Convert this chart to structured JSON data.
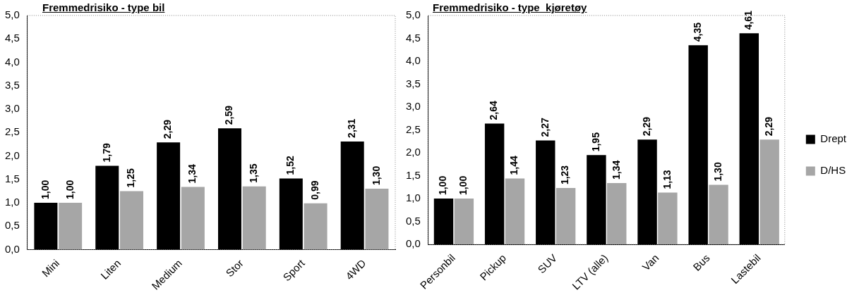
{
  "chart_data": [
    {
      "type": "bar",
      "title": "Fremmedrisiko - type bil",
      "categories": [
        "Mini",
        "Liten",
        "Medium",
        "Stor",
        "Sport",
        "4WD"
      ],
      "series": [
        {
          "color": "#000000",
          "values": [
            1.0,
            1.79,
            2.29,
            2.59,
            1.52,
            2.31
          ],
          "value_labels": [
            "1,00",
            "1,79",
            "2,29",
            "2,59",
            "1,52",
            "2,31"
          ]
        },
        {
          "color": "#a6a6a6",
          "values": [
            1.0,
            1.25,
            1.34,
            1.35,
            0.99,
            1.3
          ],
          "value_labels": [
            "1,00",
            "1,25",
            "1,34",
            "1,35",
            "0,99",
            "1,30"
          ]
        }
      ],
      "ylim": [
        0,
        5
      ],
      "yticks": [
        {
          "value": 0,
          "label": "0,0"
        },
        {
          "value": 0.5,
          "label": "0,5"
        },
        {
          "value": 1,
          "label": "1,0"
        },
        {
          "value": 1.5,
          "label": "1,5"
        },
        {
          "value": 2,
          "label": "2,0"
        },
        {
          "value": 2.5,
          "label": "2,5"
        },
        {
          "value": 3,
          "label": "3,0"
        },
        {
          "value": 3.5,
          "label": "3,5"
        },
        {
          "value": 4,
          "label": "4,0"
        },
        {
          "value": 4.5,
          "label": "4,5"
        },
        {
          "value": 5,
          "label": "5,0"
        }
      ],
      "grid": false,
      "legend": false
    },
    {
      "type": "bar",
      "title": "Fremmedrisiko - type  kjøretøy",
      "categories": [
        "Personbil",
        "Pickup",
        "SUV",
        "LTV (alle)",
        "Van",
        "Bus",
        "Lastebil"
      ],
      "series": [
        {
          "name": "Drept",
          "color": "#000000",
          "values": [
            1.0,
            2.64,
            2.27,
            1.95,
            2.29,
            4.35,
            4.61
          ],
          "value_labels": [
            "1,00",
            "2,64",
            "2,27",
            "1,95",
            "2,29",
            "4,35",
            "4,61"
          ]
        },
        {
          "name": "D/HS",
          "color": "#a6a6a6",
          "values": [
            1.0,
            1.44,
            1.23,
            1.34,
            1.13,
            1.3,
            2.29
          ],
          "value_labels": [
            "1,00",
            "1,44",
            "1,23",
            "1,34",
            "1,13",
            "1,30",
            "2,29"
          ]
        }
      ],
      "ylim": [
        0,
        5
      ],
      "yticks": [
        {
          "value": 0,
          "label": "0,0"
        },
        {
          "value": 0.5,
          "label": "0,5"
        },
        {
          "value": 1,
          "label": "1,0"
        },
        {
          "value": 1.5,
          "label": "1,5"
        },
        {
          "value": 2,
          "label": "2,0"
        },
        {
          "value": 2.5,
          "label": "2,5"
        },
        {
          "value": 3,
          "label": "3,0"
        },
        {
          "value": 3.5,
          "label": "3,5"
        },
        {
          "value": 4,
          "label": "4,0"
        },
        {
          "value": 4.5,
          "label": "4,5"
        },
        {
          "value": 5,
          "label": "5,0"
        }
      ],
      "grid": false,
      "legend": "right"
    }
  ]
}
